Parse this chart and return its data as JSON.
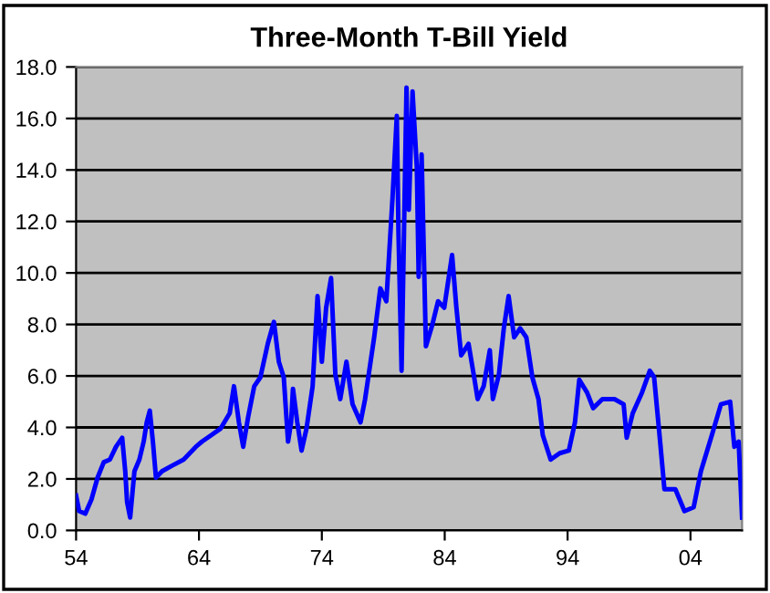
{
  "chart_data": {
    "type": "line",
    "title": "Three-Month T-Bill Yield",
    "x": [
      1954.0,
      1954.25,
      1954.75,
      1955.25,
      1955.75,
      1956.25,
      1956.75,
      1957.25,
      1957.75,
      1958.0,
      1958.15,
      1958.4,
      1958.75,
      1959.15,
      1959.5,
      1959.75,
      1960.0,
      1960.25,
      1960.5,
      1961.0,
      1961.75,
      1962.75,
      1963.75,
      1964.25,
      1965.0,
      1965.75,
      1966.5,
      1966.85,
      1967.25,
      1967.6,
      1968.0,
      1968.5,
      1969.0,
      1969.6,
      1970.1,
      1970.5,
      1970.9,
      1971.25,
      1971.5,
      1971.65,
      1972.0,
      1972.35,
      1972.75,
      1973.25,
      1973.65,
      1974.0,
      1974.35,
      1974.75,
      1975.1,
      1975.5,
      1976.0,
      1976.5,
      1977.15,
      1977.52,
      1978.26,
      1978.76,
      1979.25,
      1979.75,
      1980.1,
      1980.24,
      1980.49,
      1980.89,
      1981.08,
      1981.38,
      1981.73,
      1981.88,
      1982.12,
      1982.47,
      1982.97,
      1983.46,
      1983.96,
      1984.6,
      1984.95,
      1985.34,
      1985.94,
      1986.43,
      1986.68,
      1987.17,
      1987.67,
      1987.92,
      1988.41,
      1988.81,
      1989.2,
      1989.65,
      1990.14,
      1990.64,
      1991.13,
      1991.63,
      1991.98,
      1992.62,
      1993.36,
      1994.1,
      1994.6,
      1994.95,
      1995.59,
      1996.08,
      1996.83,
      1997.82,
      1998.56,
      1998.81,
      1999.3,
      2000.05,
      2000.69,
      2001.04,
      2001.53,
      2001.88,
      2002.77,
      2003.51,
      2004.26,
      2004.85,
      2005.74,
      2006.48,
      2007.23,
      2007.57,
      2007.92,
      2008.2
    ],
    "values": [
      1.35,
      0.75,
      0.65,
      1.2,
      2.05,
      2.65,
      2.75,
      3.25,
      3.6,
      2.3,
      1.1,
      0.5,
      2.3,
      2.75,
      3.45,
      4.2,
      4.65,
      3.45,
      2.05,
      2.3,
      2.5,
      2.75,
      3.25,
      3.45,
      3.7,
      3.95,
      4.55,
      5.6,
      4.2,
      3.25,
      4.4,
      5.6,
      5.95,
      7.25,
      8.1,
      6.55,
      5.95,
      3.45,
      4.2,
      5.5,
      4.2,
      3.1,
      3.95,
      5.6,
      9.1,
      6.55,
      8.65,
      9.8,
      6.05,
      5.1,
      6.55,
      4.9,
      4.2,
      5.1,
      7.5,
      9.4,
      8.9,
      12.9,
      16.1,
      11.5,
      6.2,
      17.2,
      12.45,
      17.05,
      14.1,
      9.85,
      14.6,
      7.15,
      7.95,
      8.9,
      8.65,
      10.7,
      8.65,
      6.8,
      7.25,
      5.85,
      5.1,
      5.6,
      7.0,
      5.1,
      6.05,
      7.85,
      9.1,
      7.5,
      7.85,
      7.5,
      5.95,
      5.1,
      3.7,
      2.75,
      3.0,
      3.1,
      4.2,
      5.85,
      5.35,
      4.75,
      5.1,
      5.1,
      4.9,
      3.6,
      4.55,
      5.35,
      6.2,
      5.95,
      3.45,
      1.6,
      1.6,
      0.75,
      0.9,
      2.3,
      3.7,
      4.9,
      5.0,
      3.25,
      3.45,
      0.5
    ],
    "color": "#0000ff",
    "xlim": [
      1954,
      2008.2
    ],
    "xticks": [
      {
        "value": 1954,
        "label": "54"
      },
      {
        "value": 1964,
        "label": "64"
      },
      {
        "value": 1974,
        "label": "74"
      },
      {
        "value": 1984,
        "label": "84"
      },
      {
        "value": 1994,
        "label": "94"
      },
      {
        "value": 2004,
        "label": "04"
      }
    ],
    "ylim": [
      0,
      18
    ],
    "yticks": [
      {
        "value": 0,
        "label": "0.0"
      },
      {
        "value": 2,
        "label": "2.0"
      },
      {
        "value": 4,
        "label": "4.0"
      },
      {
        "value": 6,
        "label": "6.0"
      },
      {
        "value": 8,
        "label": "8.0"
      },
      {
        "value": 10,
        "label": "10.0"
      },
      {
        "value": 12,
        "label": "12.0"
      },
      {
        "value": 14,
        "label": "14.0"
      },
      {
        "value": 16,
        "label": "16.0"
      },
      {
        "value": 18,
        "label": "18.0"
      }
    ],
    "grid": "y",
    "legend": false,
    "marker": "none",
    "line_style": "solid"
  }
}
